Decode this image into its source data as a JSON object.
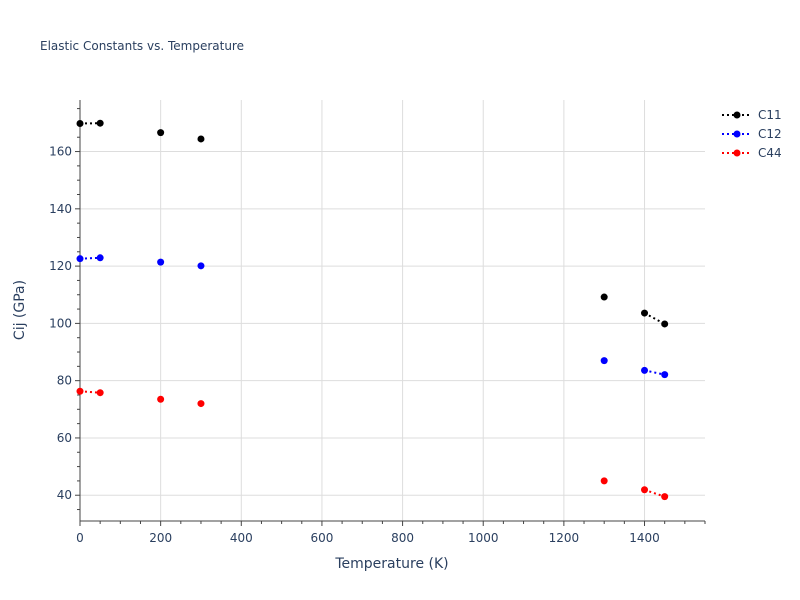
{
  "chart_data": {
    "type": "line",
    "title": "Elastic Constants vs. Temperature",
    "xlabel": "Temperature (K)",
    "ylabel": "Cij (GPa)",
    "xlim": [
      0,
      1550
    ],
    "ylim": [
      31,
      178
    ],
    "xticks": [
      0,
      200,
      400,
      600,
      800,
      1000,
      1200,
      1400
    ],
    "yticks": [
      40,
      60,
      80,
      100,
      120,
      140,
      160
    ],
    "grid": true,
    "legend_position": "top-right",
    "line_style": "dotted with markers",
    "series": [
      {
        "name": "C11",
        "color": "#000000",
        "points": [
          [
            0,
            169.8
          ],
          [
            50,
            169.9
          ],
          [
            200,
            166.6
          ],
          [
            300,
            164.4
          ],
          [
            1300,
            109.2
          ],
          [
            1400,
            103.6
          ],
          [
            1450,
            99.8
          ]
        ],
        "connected": [
          [
            0,
            1
          ],
          [
            5,
            6
          ]
        ]
      },
      {
        "name": "C12",
        "color": "#0000ff",
        "points": [
          [
            0,
            122.6
          ],
          [
            50,
            122.9
          ],
          [
            200,
            121.4
          ],
          [
            300,
            120.1
          ],
          [
            1300,
            87.0
          ],
          [
            1400,
            83.6
          ],
          [
            1450,
            82.1
          ]
        ],
        "connected": [
          [
            0,
            1
          ],
          [
            5,
            6
          ]
        ]
      },
      {
        "name": "C44",
        "color": "#ff0000",
        "points": [
          [
            0,
            76.3
          ],
          [
            50,
            75.8
          ],
          [
            200,
            73.5
          ],
          [
            300,
            72.0
          ],
          [
            1300,
            45.0
          ],
          [
            1400,
            41.9
          ],
          [
            1450,
            39.5
          ]
        ],
        "connected": [
          [
            0,
            1
          ],
          [
            5,
            6
          ]
        ]
      }
    ]
  }
}
